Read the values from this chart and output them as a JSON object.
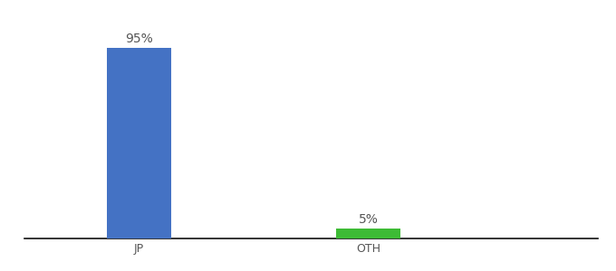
{
  "categories": [
    "JP",
    "OTH"
  ],
  "values": [
    95,
    5
  ],
  "bar_colors": [
    "#4472c4",
    "#3dbb35"
  ],
  "value_labels": [
    "95%",
    "5%"
  ],
  "background_color": "#ffffff",
  "text_color": "#555555",
  "label_fontsize": 10,
  "tick_fontsize": 9,
  "ylim": [
    0,
    108
  ],
  "bar_width": 0.28,
  "x_positions": [
    1,
    2
  ],
  "xlim": [
    0.5,
    3.0
  ]
}
